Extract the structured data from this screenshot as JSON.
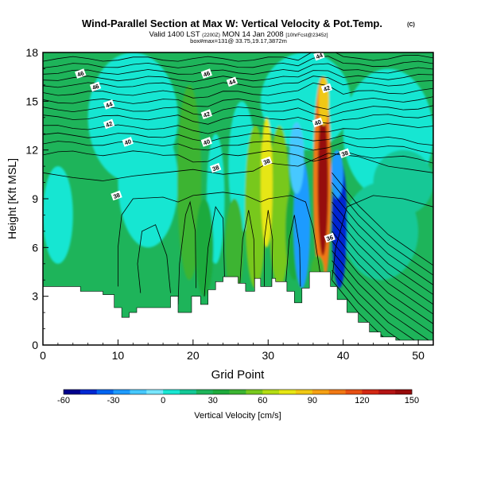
{
  "title": {
    "main": "Wind-Parallel Section at Max W: Vertical Velocity & Pot.Temp.",
    "copyright": "(C)",
    "line2_pre": "Valid 1400 LST",
    "line2_utc": "(2200Z)",
    "line2_mid": "MON 14 Jan 2008",
    "line2_run": "[10hrFcst@2345z]",
    "line3": "box#max=131@ 33.75,19.17,3872m"
  },
  "chart_data": {
    "type": "heatmap",
    "xlabel": "Grid Point",
    "ylabel": "Height [Kft MSL]",
    "xlim": [
      0,
      52
    ],
    "ylim": [
      0,
      18
    ],
    "x_ticks": [
      0,
      10,
      20,
      30,
      40,
      50
    ],
    "y_ticks": [
      0,
      3,
      6,
      9,
      12,
      15,
      18
    ],
    "colorbar": {
      "label": "Vertical Velocity [cm/s]",
      "tick_labels": [
        -60,
        -30,
        0,
        30,
        60,
        90,
        120,
        150
      ],
      "min": -60,
      "max": 150,
      "step": 10,
      "colors": [
        "#00008c",
        "#0028d2",
        "#0064f0",
        "#1e9bff",
        "#46c8ff",
        "#78e6ff",
        "#19e6d2",
        "#14c896",
        "#1eb45a",
        "#1eaa3c",
        "#3cb432",
        "#78c81e",
        "#b4dc14",
        "#e6e614",
        "#f0c814",
        "#f5a014",
        "#f07814",
        "#e65014",
        "#d22814",
        "#b41414",
        "#960a0a"
      ]
    },
    "theta_contour_labels": [
      {
        "x": 5,
        "y": 16.7,
        "text": "46"
      },
      {
        "x": 7,
        "y": 15.9,
        "text": "46"
      },
      {
        "x": 8.8,
        "y": 14.8,
        "text": "44"
      },
      {
        "x": 8.8,
        "y": 13.6,
        "text": "42"
      },
      {
        "x": 11.3,
        "y": 12.5,
        "text": "40"
      },
      {
        "x": 9.8,
        "y": 9.2,
        "text": "38"
      },
      {
        "x": 21.8,
        "y": 16.7,
        "text": "46"
      },
      {
        "x": 25.2,
        "y": 16.2,
        "text": "44"
      },
      {
        "x": 21.8,
        "y": 14.2,
        "text": "42"
      },
      {
        "x": 21.8,
        "y": 12.5,
        "text": "40"
      },
      {
        "x": 23,
        "y": 10.9,
        "text": "38"
      },
      {
        "x": 29.8,
        "y": 11.3,
        "text": "38"
      },
      {
        "x": 36.8,
        "y": 17.8,
        "text": "44"
      },
      {
        "x": 37.8,
        "y": 15.8,
        "text": "42"
      },
      {
        "x": 36.6,
        "y": 13.7,
        "text": "40"
      },
      {
        "x": 40.2,
        "y": 11.8,
        "text": "38"
      },
      {
        "x": 38.2,
        "y": 6.6,
        "text": "36"
      }
    ]
  }
}
